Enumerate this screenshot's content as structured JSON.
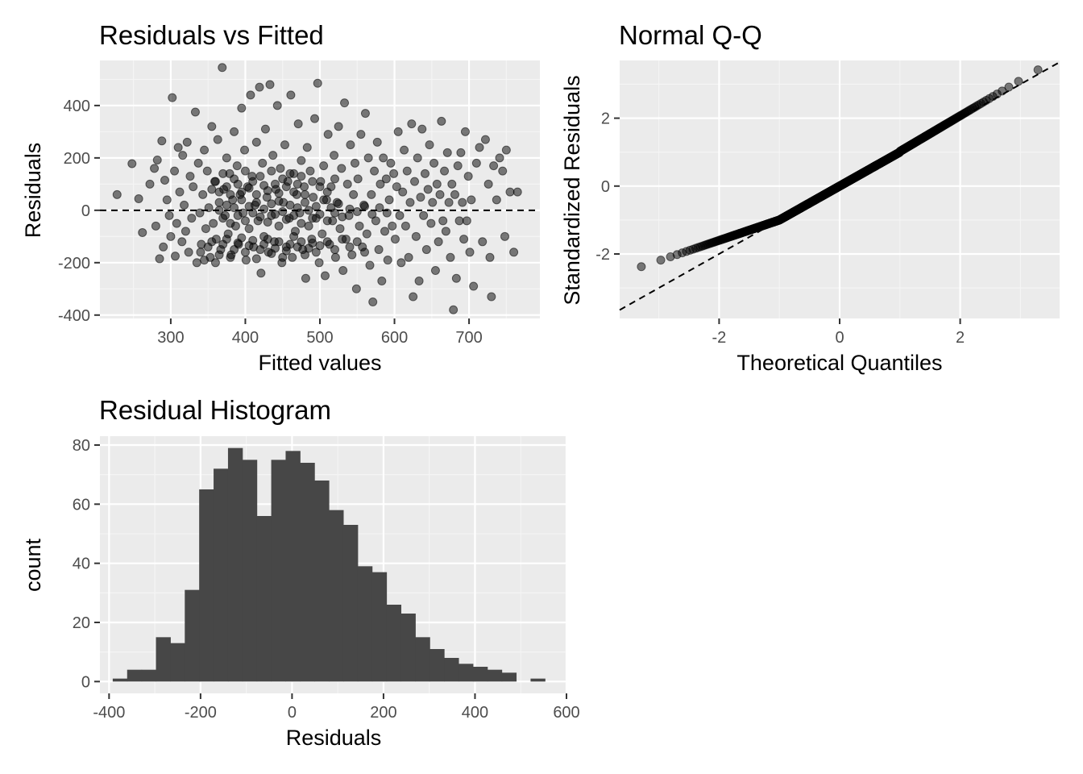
{
  "colors": {
    "panel_bg": "#ebebeb",
    "grid_major": "#ffffff",
    "grid_minor": "#f5f5f5",
    "point": "#000000",
    "bar": "#474747",
    "tick": "#333333"
  },
  "chart_data": [
    {
      "id": "residuals_vs_fitted",
      "type": "scatter",
      "title": "Residuals vs Fitted",
      "xlabel": "Fitted values",
      "ylabel": "Residuals",
      "xlim": [
        205,
        795
      ],
      "ylim": [
        -413,
        572
      ],
      "xticks": [
        300,
        400,
        500,
        600,
        700
      ],
      "yticks": [
        -400,
        -200,
        0,
        200,
        400
      ],
      "reference_line": {
        "type": "horizontal",
        "y": 0,
        "style": "dashed"
      },
      "points": [
        [
          228,
          60
        ],
        [
          248,
          178
        ],
        [
          257,
          44
        ],
        [
          262,
          -85
        ],
        [
          272,
          100
        ],
        [
          278,
          160
        ],
        [
          280,
          -60
        ],
        [
          282,
          192
        ],
        [
          285,
          -185
        ],
        [
          288,
          265
        ],
        [
          290,
          -140
        ],
        [
          292,
          115
        ],
        [
          295,
          40
        ],
        [
          298,
          -20
        ],
        [
          300,
          -100
        ],
        [
          302,
          430
        ],
        [
          305,
          150
        ],
        [
          306,
          -175
        ],
        [
          308,
          -50
        ],
        [
          310,
          240
        ],
        [
          312,
          70
        ],
        [
          315,
          -120
        ],
        [
          316,
          210
        ],
        [
          318,
          20
        ],
        [
          320,
          -80
        ],
        [
          322,
          260
        ],
        [
          324,
          -160
        ],
        [
          326,
          130
        ],
        [
          328,
          -30
        ],
        [
          330,
          90
        ],
        [
          333,
          375
        ],
        [
          335,
          -200
        ],
        [
          337,
          180
        ],
        [
          339,
          -10
        ],
        [
          341,
          -130
        ],
        [
          343,
          60
        ],
        [
          345,
          230
        ],
        [
          347,
          -70
        ],
        [
          349,
          150
        ],
        [
          351,
          10
        ],
        [
          353,
          -180
        ],
        [
          355,
          320
        ],
        [
          357,
          -50
        ],
        [
          359,
          110
        ],
        [
          361,
          -110
        ],
        [
          363,
          270
        ],
        [
          365,
          30
        ],
        [
          367,
          -150
        ],
        [
          369,
          545
        ],
        [
          371,
          80
        ],
        [
          373,
          -20
        ],
        [
          375,
          200
        ],
        [
          377,
          -90
        ],
        [
          379,
          140
        ],
        [
          381,
          -170
        ],
        [
          383,
          40
        ],
        [
          385,
          300
        ],
        [
          387,
          -60
        ],
        [
          389,
          170
        ],
        [
          391,
          -130
        ],
        [
          393,
          60
        ],
        [
          395,
          390
        ],
        [
          397,
          -10
        ],
        [
          399,
          230
        ],
        [
          401,
          -190
        ],
        [
          403,
          90
        ],
        [
          405,
          -70
        ],
        [
          407,
          440
        ],
        [
          409,
          130
        ],
        [
          411,
          -140
        ],
        [
          413,
          20
        ],
        [
          415,
          260
        ],
        [
          417,
          -40
        ],
        [
          419,
          470
        ],
        [
          421,
          -240
        ],
        [
          423,
          180
        ],
        [
          425,
          -100
        ],
        [
          427,
          310
        ],
        [
          429,
          50
        ],
        [
          431,
          -160
        ],
        [
          433,
          480
        ],
        [
          435,
          -20
        ],
        [
          437,
          210
        ],
        [
          439,
          -120
        ],
        [
          441,
          80
        ],
        [
          443,
          400
        ],
        [
          445,
          -60
        ],
        [
          447,
          160
        ],
        [
          449,
          -200
        ],
        [
          451,
          30
        ],
        [
          453,
          250
        ],
        [
          455,
          -140
        ],
        [
          457,
          110
        ],
        [
          459,
          -30
        ],
        [
          461,
          440
        ],
        [
          463,
          -180
        ],
        [
          465,
          140
        ],
        [
          467,
          -80
        ],
        [
          469,
          60
        ],
        [
          471,
          330
        ],
        [
          473,
          -10
        ],
        [
          475,
          190
        ],
        [
          477,
          -150
        ],
        [
          479,
          90
        ],
        [
          481,
          -260
        ],
        [
          483,
          240
        ],
        [
          485,
          -60
        ],
        [
          487,
          150
        ],
        [
          489,
          -110
        ],
        [
          491,
          50
        ],
        [
          493,
          350
        ],
        [
          495,
          -30
        ],
        [
          497,
          485
        ],
        [
          499,
          -200
        ],
        [
          501,
          110
        ],
        [
          503,
          -90
        ],
        [
          505,
          170
        ],
        [
          507,
          -250
        ],
        [
          509,
          40
        ],
        [
          511,
          290
        ],
        [
          513,
          -130
        ],
        [
          515,
          90
        ],
        [
          517,
          -40
        ],
        [
          519,
          210
        ],
        [
          521,
          -180
        ],
        [
          523,
          30
        ],
        [
          525,
          320
        ],
        [
          527,
          -70
        ],
        [
          529,
          160
        ],
        [
          531,
          -230
        ],
        [
          533,
          410
        ],
        [
          535,
          -110
        ],
        [
          537,
          100
        ],
        [
          539,
          -20
        ],
        [
          541,
          250
        ],
        [
          543,
          -170
        ],
        [
          545,
          60
        ],
        [
          547,
          180
        ],
        [
          549,
          -300
        ],
        [
          551,
          120
        ],
        [
          553,
          -60
        ],
        [
          555,
          290
        ],
        [
          557,
          -140
        ],
        [
          559,
          20
        ],
        [
          561,
          370
        ],
        [
          563,
          -90
        ],
        [
          565,
          200
        ],
        [
          567,
          -210
        ],
        [
          569,
          60
        ],
        [
          571,
          -350
        ],
        [
          573,
          150
        ],
        [
          575,
          -40
        ],
        [
          577,
          260
        ],
        [
          579,
          -150
        ],
        [
          581,
          100
        ],
        [
          583,
          -270
        ],
        [
          585,
          200
        ],
        [
          587,
          -80
        ],
        [
          589,
          120
        ],
        [
          591,
          -190
        ],
        [
          593,
          40
        ],
        [
          595,
          180
        ],
        [
          597,
          -60
        ],
        [
          599,
          140
        ],
        [
          601,
          -110
        ],
        [
          603,
          90
        ],
        [
          605,
          300
        ],
        [
          607,
          -20
        ],
        [
          609,
          -200
        ],
        [
          611,
          70
        ],
        [
          613,
          230
        ],
        [
          615,
          -60
        ],
        [
          617,
          150
        ],
        [
          619,
          -180
        ],
        [
          621,
          30
        ],
        [
          623,
          330
        ],
        [
          625,
          -330
        ],
        [
          627,
          110
        ],
        [
          629,
          -100
        ],
        [
          631,
          200
        ],
        [
          633,
          -270
        ],
        [
          635,
          50
        ],
        [
          637,
          310
        ],
        [
          639,
          -20
        ],
        [
          641,
          140
        ],
        [
          643,
          -150
        ],
        [
          645,
          80
        ],
        [
          647,
          250
        ],
        [
          649,
          -50
        ],
        [
          651,
          30
        ],
        [
          653,
          180
        ],
        [
          655,
          -230
        ],
        [
          657,
          100
        ],
        [
          659,
          -120
        ],
        [
          661,
          60
        ],
        [
          663,
          340
        ],
        [
          665,
          -40
        ],
        [
          667,
          150
        ],
        [
          669,
          -80
        ],
        [
          671,
          220
        ],
        [
          673,
          30
        ],
        [
          675,
          -180
        ],
        [
          677,
          100
        ],
        [
          679,
          -380
        ],
        [
          681,
          60
        ],
        [
          683,
          -260
        ],
        [
          685,
          170
        ],
        [
          687,
          -40
        ],
        [
          689,
          220
        ],
        [
          691,
          30
        ],
        [
          693,
          -110
        ],
        [
          695,
          300
        ],
        [
          697,
          -40
        ],
        [
          699,
          130
        ],
        [
          701,
          -160
        ],
        [
          703,
          40
        ],
        [
          706,
          -290
        ],
        [
          710,
          180
        ],
        [
          714,
          240
        ],
        [
          718,
          -120
        ],
        [
          722,
          270
        ],
        [
          726,
          100
        ],
        [
          728,
          -180
        ],
        [
          730,
          -330
        ],
        [
          733,
          170
        ],
        [
          737,
          40
        ],
        [
          741,
          200
        ],
        [
          745,
          150
        ],
        [
          748,
          -100
        ],
        [
          750,
          230
        ],
        [
          755,
          70
        ],
        [
          760,
          -160
        ],
        [
          765,
          70
        ],
        [
          340,
          -160
        ],
        [
          345,
          -190
        ],
        [
          350,
          -140
        ],
        [
          355,
          -120
        ],
        [
          360,
          -200
        ],
        [
          365,
          -170
        ],
        [
          370,
          -130
        ],
        [
          375,
          -110
        ],
        [
          380,
          -180
        ],
        [
          385,
          -150
        ],
        [
          390,
          -125
        ],
        [
          395,
          -105
        ],
        [
          400,
          -160
        ],
        [
          405,
          -135
        ],
        [
          410,
          -115
        ],
        [
          415,
          -185
        ],
        [
          420,
          -150
        ],
        [
          425,
          -130
        ],
        [
          430,
          -110
        ],
        [
          435,
          -165
        ],
        [
          440,
          -145
        ],
        [
          445,
          -120
        ],
        [
          450,
          -180
        ],
        [
          455,
          -155
        ],
        [
          460,
          -130
        ],
        [
          465,
          -100
        ],
        [
          470,
          -140
        ],
        [
          475,
          -120
        ],
        [
          480,
          -170
        ],
        [
          485,
          -145
        ],
        [
          490,
          -125
        ],
        [
          495,
          -160
        ],
        [
          500,
          -135
        ],
        [
          510,
          -120
        ],
        [
          520,
          -150
        ],
        [
          530,
          -110
        ],
        [
          540,
          -140
        ],
        [
          550,
          -120
        ],
        [
          560,
          -160
        ],
        [
          355,
          80
        ],
        [
          360,
          110
        ],
        [
          365,
          70
        ],
        [
          370,
          140
        ],
        [
          375,
          90
        ],
        [
          380,
          60
        ],
        [
          385,
          120
        ],
        [
          390,
          100
        ],
        [
          395,
          70
        ],
        [
          400,
          150
        ],
        [
          405,
          85
        ],
        [
          410,
          110
        ],
        [
          415,
          60
        ],
        [
          420,
          130
        ],
        [
          425,
          95
        ],
        [
          430,
          75
        ],
        [
          435,
          150
        ],
        [
          440,
          100
        ],
        [
          445,
          65
        ],
        [
          450,
          120
        ],
        [
          455,
          90
        ],
        [
          460,
          140
        ],
        [
          465,
          70
        ],
        [
          470,
          100
        ],
        [
          475,
          130
        ],
        [
          480,
          60
        ],
        [
          490,
          110
        ],
        [
          500,
          90
        ],
        [
          510,
          70
        ],
        [
          520,
          120
        ],
        [
          365,
          0
        ],
        [
          370,
          -30
        ],
        [
          375,
          20
        ],
        [
          380,
          -50
        ],
        [
          385,
          10
        ],
        [
          390,
          -20
        ],
        [
          395,
          40
        ],
        [
          400,
          -40
        ],
        [
          405,
          15
        ],
        [
          410,
          -10
        ],
        [
          415,
          30
        ],
        [
          420,
          -25
        ],
        [
          425,
          5
        ],
        [
          430,
          -45
        ],
        [
          435,
          25
        ],
        [
          440,
          -15
        ],
        [
          445,
          35
        ],
        [
          450,
          -5
        ],
        [
          455,
          -35
        ],
        [
          460,
          20
        ],
        [
          465,
          -20
        ],
        [
          470,
          10
        ],
        [
          475,
          -50
        ],
        [
          480,
          30
        ],
        [
          485,
          0
        ],
        [
          490,
          -30
        ],
        [
          495,
          15
        ],
        [
          500,
          -15
        ],
        [
          505,
          40
        ],
        [
          510,
          -40
        ],
        [
          515,
          10
        ],
        [
          520,
          -10
        ],
        [
          525,
          25
        ],
        [
          530,
          -25
        ],
        [
          540,
          5
        ],
        [
          550,
          -5
        ],
        [
          560,
          15
        ],
        [
          570,
          -15
        ],
        [
          580,
          10
        ],
        [
          590,
          -10
        ]
      ]
    },
    {
      "id": "normal_qq",
      "type": "scatter",
      "title": "Normal Q-Q",
      "xlabel": "Theoretical Quantiles",
      "ylabel": "Standardized Residuals",
      "xlim": [
        -3.65,
        3.65
      ],
      "ylim": [
        -3.9,
        3.7
      ],
      "xticks": [
        -2,
        0,
        2
      ],
      "yticks": [
        -2,
        0,
        2
      ],
      "reference_line": {
        "type": "diagonal",
        "slope": 1,
        "intercept": 0,
        "style": "dashed"
      },
      "points_description": "1000 sample quantiles against theoretical normal quantiles"
    },
    {
      "id": "residual_histogram",
      "type": "bar",
      "title": "Residual Histogram",
      "xlabel": "Residuals",
      "ylabel": "count",
      "xlim": [
        -420,
        600
      ],
      "ylim": [
        -4,
        83
      ],
      "xticks": [
        -400,
        -200,
        0,
        200,
        400,
        600
      ],
      "yticks": [
        0,
        20,
        40,
        60,
        80
      ],
      "bin_width": 31.5,
      "bin_start": -392,
      "counts": [
        1,
        4,
        4,
        15,
        13,
        31,
        65,
        72,
        79,
        75,
        56,
        75,
        78,
        74,
        68,
        58,
        53,
        39,
        37,
        26,
        23,
        15,
        11,
        8,
        6,
        5,
        4,
        3,
        0,
        1
      ]
    }
  ]
}
